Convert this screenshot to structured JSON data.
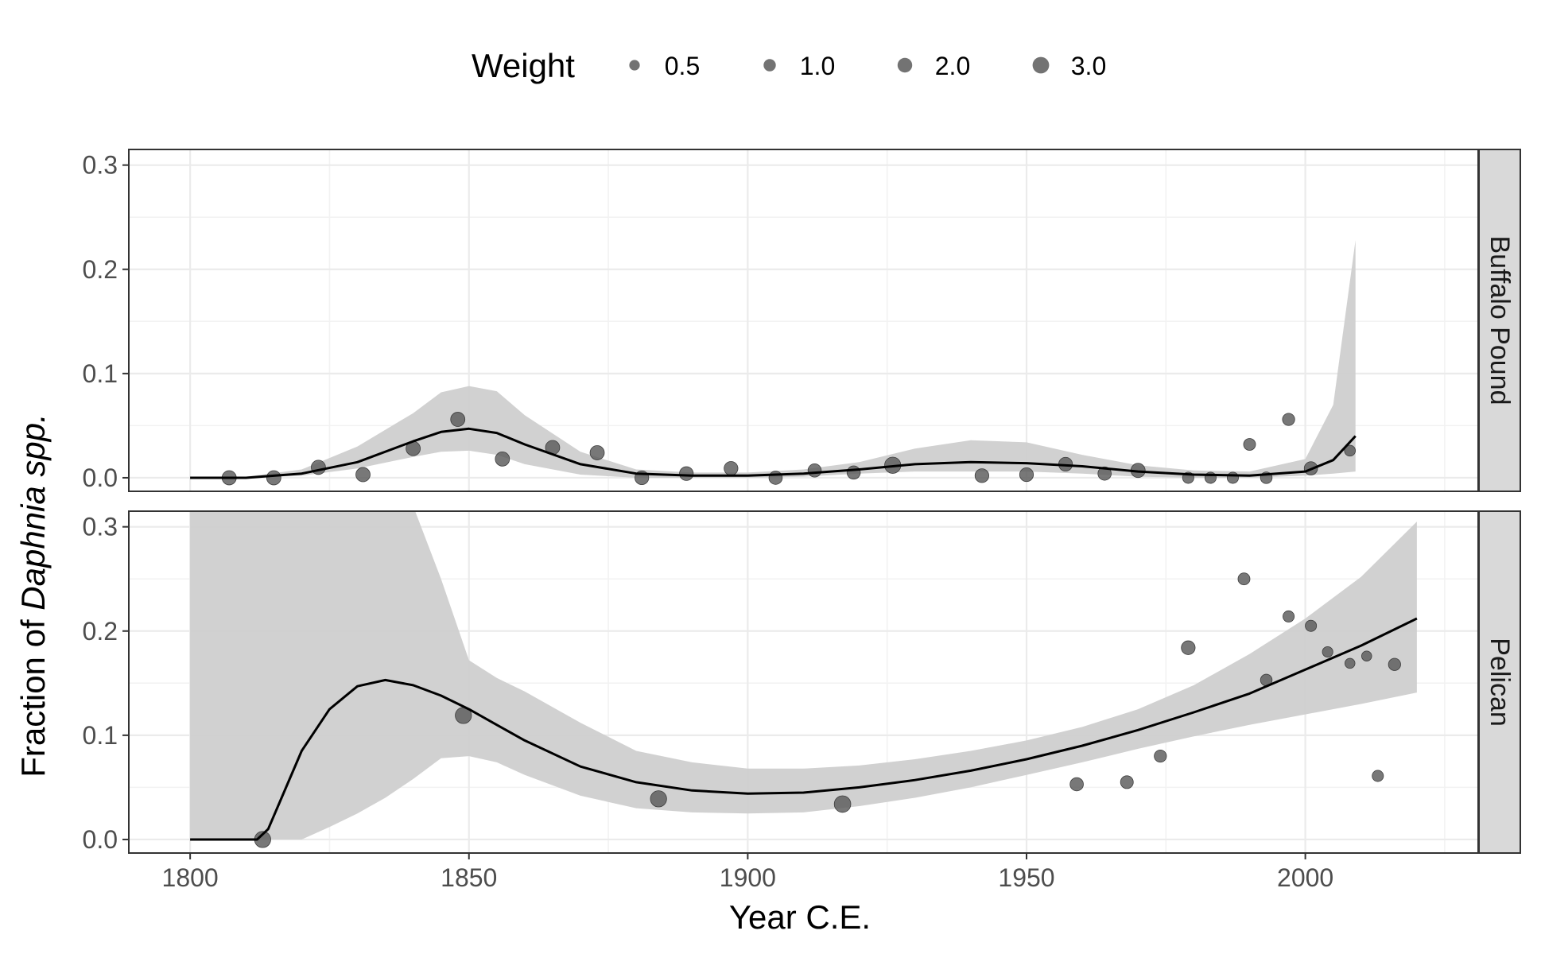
{
  "chart_data": {
    "type": "scatter",
    "xlabel": "Year C.E.",
    "ylabel_prefix": "Fraction of ",
    "ylabel_italic": "Daphnia spp.",
    "xlim": [
      1789,
      2031
    ],
    "ylim": [
      -0.013,
      0.315
    ],
    "x_ticks": [
      "1800",
      "1850",
      "1900",
      "1950",
      "2000"
    ],
    "y_ticks": [
      "0.0",
      "0.1",
      "0.2",
      "0.3"
    ],
    "grid": true,
    "legend": {
      "position": "top",
      "title": "Weight",
      "entries": [
        {
          "label": "0.5",
          "weight": 0.5
        },
        {
          "label": "1.0",
          "weight": 1.0
        },
        {
          "label": "2.0",
          "weight": 2.0
        },
        {
          "label": "3.0",
          "weight": 3.0
        }
      ]
    },
    "colors": {
      "point": "#5a5a5a",
      "ribbon": "#cfcfcf",
      "line": "#000000",
      "strip": "#d9d9d9"
    },
    "panels": [
      {
        "name": "Buffalo Pound",
        "points": [
          {
            "x": 1807,
            "y": 0.0,
            "w": 1.8
          },
          {
            "x": 1815,
            "y": 0.0,
            "w": 1.8
          },
          {
            "x": 1823,
            "y": 0.01,
            "w": 1.8
          },
          {
            "x": 1831,
            "y": 0.003,
            "w": 1.8
          },
          {
            "x": 1840,
            "y": 0.028,
            "w": 1.8
          },
          {
            "x": 1848,
            "y": 0.056,
            "w": 1.8
          },
          {
            "x": 1856,
            "y": 0.018,
            "w": 1.8
          },
          {
            "x": 1865,
            "y": 0.029,
            "w": 1.8
          },
          {
            "x": 1873,
            "y": 0.024,
            "w": 1.8
          },
          {
            "x": 1881,
            "y": 0.0,
            "w": 1.6
          },
          {
            "x": 1889,
            "y": 0.004,
            "w": 1.6
          },
          {
            "x": 1897,
            "y": 0.009,
            "w": 1.6
          },
          {
            "x": 1905,
            "y": 0.0,
            "w": 1.4
          },
          {
            "x": 1912,
            "y": 0.007,
            "w": 1.4
          },
          {
            "x": 1919,
            "y": 0.005,
            "w": 1.4
          },
          {
            "x": 1926,
            "y": 0.012,
            "w": 2.8
          },
          {
            "x": 1942,
            "y": 0.002,
            "w": 1.6
          },
          {
            "x": 1950,
            "y": 0.003,
            "w": 1.6
          },
          {
            "x": 1957,
            "y": 0.013,
            "w": 1.6
          },
          {
            "x": 1964,
            "y": 0.004,
            "w": 1.4
          },
          {
            "x": 1970,
            "y": 0.007,
            "w": 1.8
          },
          {
            "x": 1979,
            "y": 0.0,
            "w": 0.7
          },
          {
            "x": 1983,
            "y": 0.0,
            "w": 0.7
          },
          {
            "x": 1987,
            "y": 0.0,
            "w": 0.7
          },
          {
            "x": 1990,
            "y": 0.032,
            "w": 0.9
          },
          {
            "x": 1993,
            "y": 0.0,
            "w": 0.8
          },
          {
            "x": 1997,
            "y": 0.056,
            "w": 1.0
          },
          {
            "x": 2001,
            "y": 0.009,
            "w": 1.4
          },
          {
            "x": 2008,
            "y": 0.026,
            "w": 0.6
          }
        ],
        "fit_x": [
          1800,
          1810,
          1820,
          1830,
          1840,
          1845,
          1850,
          1855,
          1860,
          1870,
          1880,
          1890,
          1900,
          1910,
          1920,
          1930,
          1940,
          1950,
          1960,
          1970,
          1980,
          1990,
          2000,
          2005,
          2009
        ],
        "fit_y": [
          0.0,
          0.0,
          0.004,
          0.015,
          0.035,
          0.044,
          0.047,
          0.043,
          0.032,
          0.013,
          0.004,
          0.002,
          0.002,
          0.004,
          0.008,
          0.013,
          0.015,
          0.014,
          0.011,
          0.006,
          0.003,
          0.002,
          0.006,
          0.017,
          0.04
        ],
        "fit_lower": [
          0.0,
          0.0,
          0.002,
          0.009,
          0.02,
          0.025,
          0.026,
          0.022,
          0.013,
          0.003,
          0.0,
          0.0,
          0.0,
          0.001,
          0.004,
          0.006,
          0.006,
          0.006,
          0.004,
          0.001,
          0.0,
          0.0,
          0.002,
          0.004,
          0.006
        ],
        "fit_upper": [
          0.0,
          0.001,
          0.008,
          0.03,
          0.062,
          0.082,
          0.088,
          0.083,
          0.06,
          0.025,
          0.008,
          0.005,
          0.005,
          0.008,
          0.015,
          0.028,
          0.036,
          0.034,
          0.022,
          0.012,
          0.007,
          0.006,
          0.018,
          0.07,
          0.228
        ]
      },
      {
        "name": "Pelican",
        "points": [
          {
            "x": 1813,
            "y": 0.0,
            "w": 2.8
          },
          {
            "x": 1849,
            "y": 0.119,
            "w": 2.8
          },
          {
            "x": 1884,
            "y": 0.039,
            "w": 2.8
          },
          {
            "x": 1917,
            "y": 0.034,
            "w": 3.0
          },
          {
            "x": 1959,
            "y": 0.053,
            "w": 1.4
          },
          {
            "x": 1968,
            "y": 0.055,
            "w": 1.2
          },
          {
            "x": 1974,
            "y": 0.08,
            "w": 1.0
          },
          {
            "x": 1979,
            "y": 0.184,
            "w": 1.6
          },
          {
            "x": 1989,
            "y": 0.25,
            "w": 0.9
          },
          {
            "x": 1993,
            "y": 0.153,
            "w": 0.8
          },
          {
            "x": 1997,
            "y": 0.214,
            "w": 0.7
          },
          {
            "x": 2001,
            "y": 0.205,
            "w": 0.7
          },
          {
            "x": 2004,
            "y": 0.18,
            "w": 0.5
          },
          {
            "x": 2008,
            "y": 0.169,
            "w": 0.4
          },
          {
            "x": 2011,
            "y": 0.176,
            "w": 0.4
          },
          {
            "x": 2013,
            "y": 0.061,
            "w": 0.7
          },
          {
            "x": 2016,
            "y": 0.168,
            "w": 1.0
          }
        ],
        "fit_x": [
          1800,
          1812,
          1814,
          1816,
          1820,
          1825,
          1830,
          1835,
          1840,
          1845,
          1850,
          1855,
          1860,
          1870,
          1880,
          1890,
          1900,
          1910,
          1920,
          1930,
          1940,
          1950,
          1960,
          1970,
          1980,
          1990,
          2000,
          2010,
          2020
        ],
        "fit_y": [
          0.0,
          0.0,
          0.01,
          0.035,
          0.085,
          0.125,
          0.147,
          0.153,
          0.148,
          0.138,
          0.125,
          0.11,
          0.095,
          0.07,
          0.055,
          0.047,
          0.044,
          0.045,
          0.05,
          0.057,
          0.066,
          0.077,
          0.09,
          0.105,
          0.122,
          0.14,
          0.163,
          0.186,
          0.212
        ],
        "fit_lower": [
          0.0,
          0.0,
          0.0,
          0.0,
          0.0,
          0.012,
          0.025,
          0.04,
          0.058,
          0.078,
          0.08,
          0.074,
          0.062,
          0.042,
          0.03,
          0.026,
          0.025,
          0.026,
          0.032,
          0.04,
          0.05,
          0.062,
          0.074,
          0.087,
          0.099,
          0.11,
          0.12,
          0.13,
          0.141
        ],
        "fit_upper": [
          0.32,
          0.32,
          0.32,
          0.32,
          0.32,
          0.32,
          0.32,
          0.32,
          0.32,
          0.25,
          0.172,
          0.155,
          0.142,
          0.112,
          0.085,
          0.074,
          0.068,
          0.068,
          0.071,
          0.077,
          0.085,
          0.095,
          0.108,
          0.125,
          0.148,
          0.178,
          0.212,
          0.252,
          0.305
        ]
      }
    ]
  }
}
